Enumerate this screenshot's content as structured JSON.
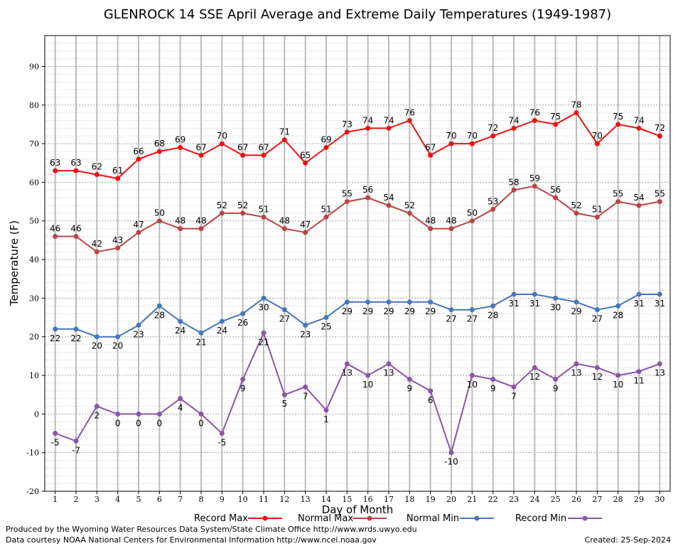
{
  "chart_data": {
    "type": "line",
    "title": "GLENROCK 14 SSE April Average and Extreme Daily Temperatures (1949-1987)",
    "xlabel": "Day of Month",
    "ylabel": "Temperature (F)",
    "ylim": [
      -20,
      98
    ],
    "yticks": [
      -20,
      -10,
      0,
      10,
      20,
      30,
      40,
      50,
      60,
      70,
      80,
      90
    ],
    "xlim": [
      0.5,
      30.5
    ],
    "x": [
      1,
      2,
      3,
      4,
      5,
      6,
      7,
      8,
      9,
      10,
      11,
      12,
      13,
      14,
      15,
      16,
      17,
      18,
      19,
      20,
      21,
      22,
      23,
      24,
      25,
      26,
      27,
      28,
      29,
      30
    ],
    "grid": true,
    "legend_position": "bottom",
    "series": [
      {
        "name": "Record Max",
        "color": "#ee1111",
        "label_position": "above",
        "values": [
          63,
          63,
          62,
          61,
          66,
          68,
          69,
          67,
          70,
          67,
          67,
          71,
          65,
          69,
          73,
          74,
          74,
          76,
          67,
          70,
          70,
          72,
          74,
          76,
          75,
          78,
          70,
          75,
          74,
          72
        ]
      },
      {
        "name": "Normal Max",
        "color": "#bb4444",
        "label_position": "above",
        "values": [
          46,
          46,
          42,
          43,
          47,
          50,
          48,
          48,
          52,
          52,
          51,
          48,
          47,
          51,
          55,
          56,
          54,
          52,
          48,
          48,
          50,
          53,
          58,
          59,
          56,
          52,
          51,
          55,
          54,
          55
        ]
      },
      {
        "name": "Normal Min",
        "color": "#4477bb",
        "label_position": "below",
        "values": [
          22,
          22,
          20,
          20,
          23,
          28,
          24,
          21,
          24,
          26,
          30,
          27,
          23,
          25,
          29,
          29,
          29,
          29,
          29,
          27,
          27,
          28,
          31,
          31,
          30,
          29,
          27,
          28,
          31,
          31
        ]
      },
      {
        "name": "Record Min",
        "color": "#8855aa",
        "label_position": "below",
        "values": [
          -5,
          -7,
          2,
          0,
          0,
          0,
          4,
          0,
          -5,
          9,
          21,
          5,
          7,
          1,
          13,
          10,
          13,
          9,
          6,
          -10,
          10,
          9,
          7,
          12,
          9,
          13,
          12,
          10,
          11,
          13
        ]
      }
    ]
  },
  "footer": {
    "produced_by": "Produced by the Wyoming Water Resources Data System/State Climate Office http://www.wrds.uwyo.edu",
    "data_courtesy": "Data courtesy NOAA National Centers for Environmental Information http://www.ncei.noaa.gov",
    "created": "Created:  25-Sep-2024"
  }
}
